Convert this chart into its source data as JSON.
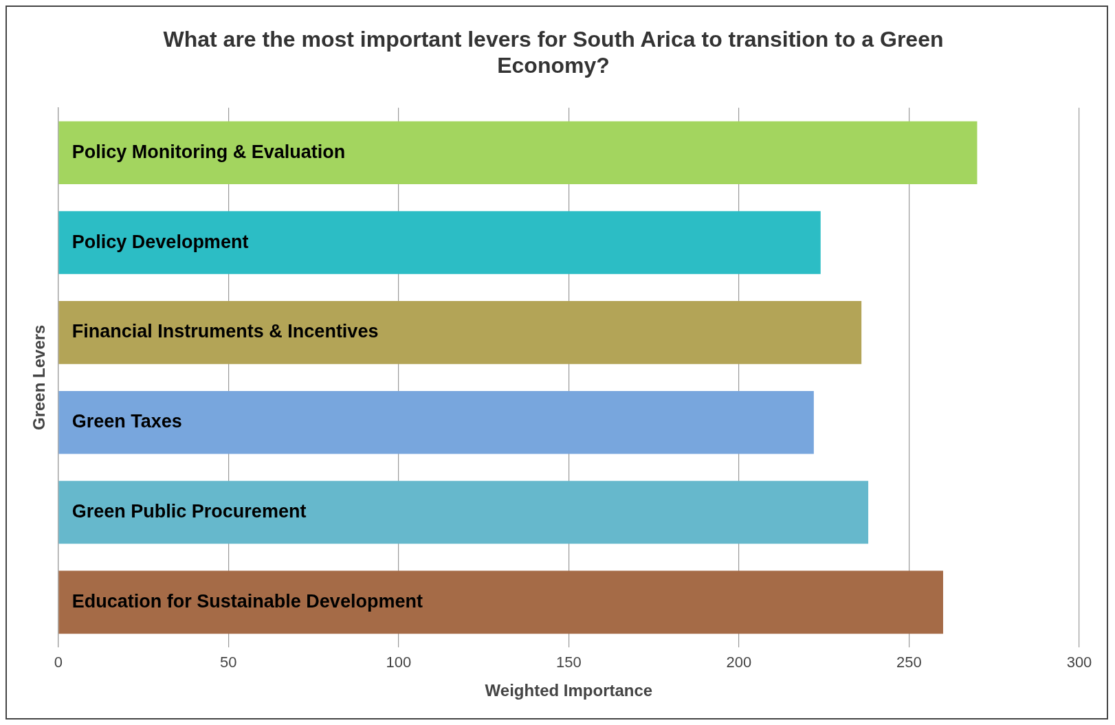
{
  "chart_data": {
    "type": "bar",
    "orientation": "horizontal",
    "title": "What are the most important levers for South Arica to transition to a Green Economy?",
    "xlabel": "Weighted Importance",
    "ylabel": "Green Levers",
    "categories": [
      "Policy Monitoring & Evaluation",
      "Policy Development",
      "Financial Instruments & Incentives",
      "Green Taxes",
      "Green Public Procurement",
      "Education for Sustainable Development"
    ],
    "values": [
      270,
      224,
      236,
      222,
      238,
      260
    ],
    "colors": [
      "#a3d55f",
      "#2cbdc5",
      "#b3a457",
      "#78a6dd",
      "#66b8cc",
      "#a56b47"
    ],
    "xlim": [
      0,
      300
    ],
    "xticks": [
      0,
      50,
      100,
      150,
      200,
      250,
      300
    ],
    "grid": "x",
    "legend": false
  }
}
